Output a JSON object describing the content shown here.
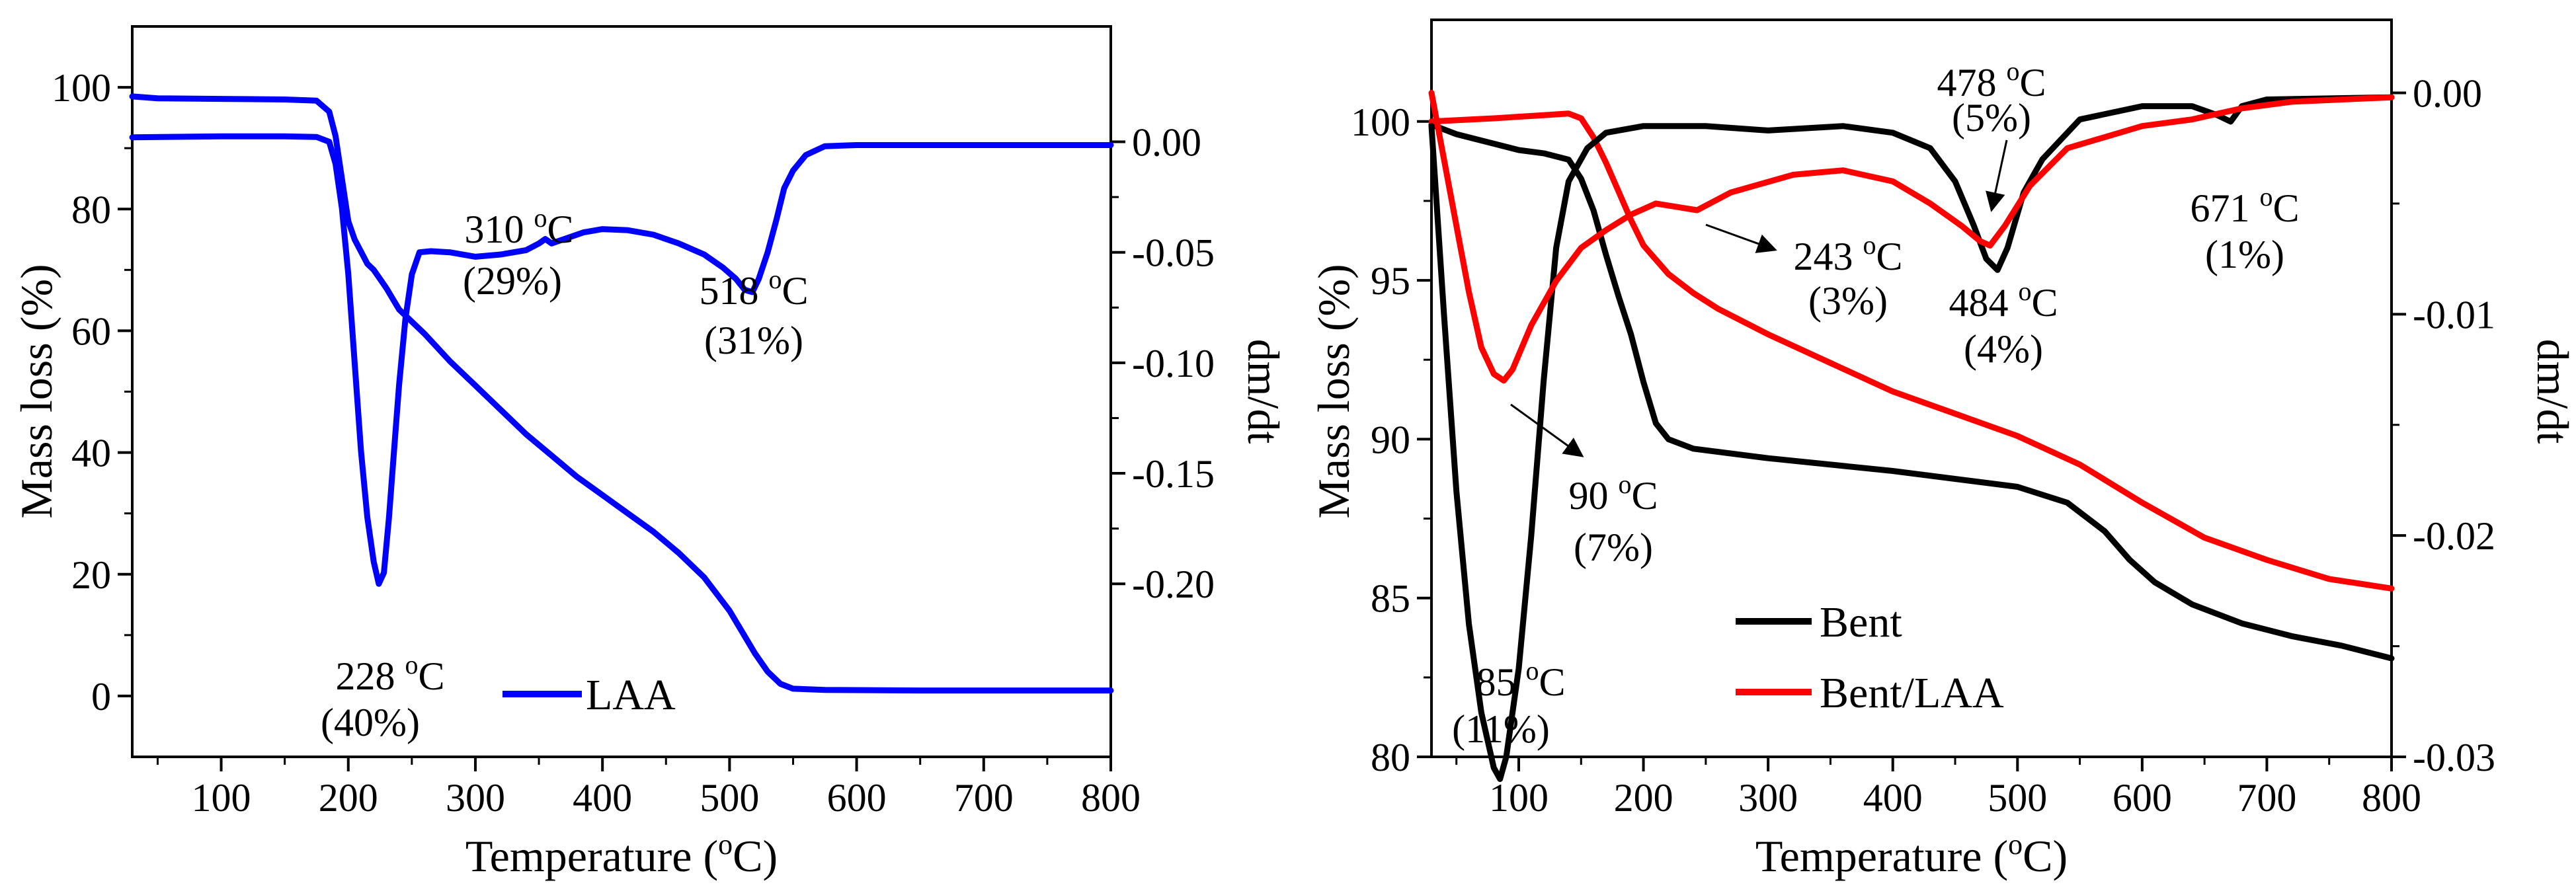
{
  "chart_data": [
    {
      "id": "left",
      "type": "line",
      "title": "",
      "xlabel": "Temperature (",
      "xlabel_sup": "o",
      "xlabel_end": "C)",
      "ylabel": "Mass loss (%)",
      "y2label": "dm/dt",
      "xlim": [
        30,
        800
      ],
      "ylim": [
        -10,
        110
      ],
      "y2lim": [
        -0.2783,
        0.0522
      ],
      "xticks": [
        100,
        200,
        300,
        400,
        500,
        600,
        700,
        800
      ],
      "xtick_labels": [
        "100",
        "200",
        "300",
        "400",
        "500",
        "600",
        "700",
        "800"
      ],
      "yticks": [
        0,
        20,
        40,
        60,
        80,
        100
      ],
      "ytick_labels": [
        "0",
        "20",
        "40",
        "60",
        "80",
        "100"
      ],
      "y2ticks": [
        0.0,
        -0.05,
        -0.1,
        -0.15,
        -0.2
      ],
      "y2tick_labels": [
        "0.00",
        "-0.05",
        "-0.10",
        "-0.15",
        "-0.20"
      ],
      "legend": {
        "position": "bottom-center",
        "entries": [
          "LAA"
        ]
      },
      "series": [
        {
          "name": "LAA",
          "axis": "left",
          "color": "#0000ff",
          "points": [
            [
              30,
              98.5
            ],
            [
              50,
              98.2
            ],
            [
              100,
              98.1
            ],
            [
              150,
              98.0
            ],
            [
              175,
              97.8
            ],
            [
              185,
              96
            ],
            [
              190,
              92
            ],
            [
              195,
              85
            ],
            [
              200,
              78
            ],
            [
              205,
              75
            ],
            [
              210,
              73
            ],
            [
              215,
              71
            ],
            [
              220,
              70
            ],
            [
              225,
              68.5
            ],
            [
              230,
              67
            ],
            [
              240,
              63.5
            ],
            [
              260,
              59.5
            ],
            [
              280,
              55
            ],
            [
              300,
              51
            ],
            [
              320,
              47
            ],
            [
              340,
              43
            ],
            [
              360,
              39.5
            ],
            [
              380,
              36
            ],
            [
              400,
              33
            ],
            [
              420,
              30
            ],
            [
              440,
              27
            ],
            [
              460,
              23.5
            ],
            [
              480,
              19.5
            ],
            [
              500,
              14
            ],
            [
              510,
              10.5
            ],
            [
              520,
              7
            ],
            [
              530,
              4
            ],
            [
              540,
              2
            ],
            [
              550,
              1.2
            ],
            [
              575,
              1.0
            ],
            [
              650,
              0.9
            ],
            [
              800,
              0.9
            ]
          ]
        },
        {
          "name": "LAA dm/dt",
          "axis": "right",
          "color": "#0000ff",
          "points": [
            [
              30,
              0.002
            ],
            [
              100,
              0.0025
            ],
            [
              150,
              0.0025
            ],
            [
              175,
              0.0022
            ],
            [
              185,
              0.0
            ],
            [
              190,
              -0.01
            ],
            [
              195,
              -0.03
            ],
            [
              200,
              -0.06
            ],
            [
              205,
              -0.1
            ],
            [
              210,
              -0.14
            ],
            [
              215,
              -0.17
            ],
            [
              220,
              -0.19
            ],
            [
              224,
              -0.2
            ],
            [
              228,
              -0.195
            ],
            [
              232,
              -0.17
            ],
            [
              236,
              -0.14
            ],
            [
              240,
              -0.11
            ],
            [
              245,
              -0.08
            ],
            [
              250,
              -0.06
            ],
            [
              256,
              -0.05
            ],
            [
              265,
              -0.0495
            ],
            [
              280,
              -0.05
            ],
            [
              300,
              -0.052
            ],
            [
              320,
              -0.051
            ],
            [
              340,
              -0.049
            ],
            [
              350,
              -0.046
            ],
            [
              355,
              -0.044
            ],
            [
              360,
              -0.046
            ],
            [
              370,
              -0.044
            ],
            [
              385,
              -0.041
            ],
            [
              400,
              -0.0395
            ],
            [
              420,
              -0.04
            ],
            [
              440,
              -0.042
            ],
            [
              460,
              -0.046
            ],
            [
              480,
              -0.051
            ],
            [
              495,
              -0.057
            ],
            [
              505,
              -0.062
            ],
            [
              512,
              -0.067
            ],
            [
              518,
              -0.068
            ],
            [
              523,
              -0.062
            ],
            [
              530,
              -0.05
            ],
            [
              537,
              -0.035
            ],
            [
              543,
              -0.021
            ],
            [
              550,
              -0.013
            ],
            [
              560,
              -0.006
            ],
            [
              575,
              -0.002
            ],
            [
              600,
              -0.0015
            ],
            [
              700,
              -0.0015
            ],
            [
              800,
              -0.0015
            ]
          ]
        }
      ],
      "annotations": [
        {
          "temp": "228",
          "unit_sup": "o",
          "unit": "C",
          "pct": "(40%)"
        },
        {
          "temp": "310",
          "unit_sup": "o",
          "unit": "C",
          "pct": "(29%)"
        },
        {
          "temp": "518",
          "unit_sup": "o",
          "unit": "C",
          "pct": "(31%)"
        }
      ]
    },
    {
      "id": "right",
      "type": "line",
      "title": "",
      "xlabel": "Temperature (",
      "xlabel_sup": "o",
      "xlabel_end": "C)",
      "ylabel": "Mass loss (%)",
      "y2label": "dm/dt",
      "xlim": [
        30,
        800
      ],
      "ylim": [
        80,
        103.2
      ],
      "y2lim": [
        -0.03,
        0.0033
      ],
      "xticks": [
        100,
        200,
        300,
        400,
        500,
        600,
        700,
        800
      ],
      "xtick_labels": [
        "100",
        "200",
        "300",
        "400",
        "500",
        "600",
        "700",
        "800"
      ],
      "yticks": [
        80,
        85,
        90,
        95,
        100
      ],
      "ytick_labels": [
        "80",
        "85",
        "90",
        "95",
        "100"
      ],
      "y2ticks": [
        0.0,
        -0.01,
        -0.02,
        -0.03
      ],
      "y2tick_labels": [
        "0.00",
        "-0.01",
        "-0.02",
        "-0.03"
      ],
      "legend": {
        "position": "bottom-center",
        "entries": [
          "Bent",
          "Bent/LAA"
        ]
      },
      "series": [
        {
          "name": "Bent",
          "axis": "left",
          "color": "#000000",
          "points": [
            [
              30,
              99.9
            ],
            [
              50,
              99.6
            ],
            [
              80,
              99.3
            ],
            [
              100,
              99.1
            ],
            [
              120,
              99.0
            ],
            [
              140,
              98.8
            ],
            [
              150,
              98.2
            ],
            [
              160,
              97.2
            ],
            [
              170,
              95.8
            ],
            [
              180,
              94.5
            ],
            [
              190,
              93.3
            ],
            [
              200,
              91.8
            ],
            [
              210,
              90.5
            ],
            [
              220,
              90.0
            ],
            [
              240,
              89.7
            ],
            [
              300,
              89.4
            ],
            [
              400,
              89.0
            ],
            [
              500,
              88.5
            ],
            [
              540,
              88.0
            ],
            [
              570,
              87.1
            ],
            [
              590,
              86.2
            ],
            [
              610,
              85.5
            ],
            [
              640,
              84.8
            ],
            [
              680,
              84.2
            ],
            [
              720,
              83.8
            ],
            [
              760,
              83.5
            ],
            [
              800,
              83.1
            ]
          ]
        },
        {
          "name": "Bent/LAA",
          "axis": "left",
          "color": "#ff0000",
          "points": [
            [
              30,
              100.0
            ],
            [
              80,
              100.1
            ],
            [
              120,
              100.2
            ],
            [
              140,
              100.25
            ],
            [
              150,
              100.1
            ],
            [
              160,
              99.5
            ],
            [
              170,
              98.7
            ],
            [
              180,
              97.8
            ],
            [
              190,
              96.9
            ],
            [
              200,
              96.1
            ],
            [
              220,
              95.2
            ],
            [
              240,
              94.6
            ],
            [
              260,
              94.1
            ],
            [
              300,
              93.3
            ],
            [
              350,
              92.4
            ],
            [
              400,
              91.5
            ],
            [
              450,
              90.8
            ],
            [
              500,
              90.1
            ],
            [
              550,
              89.2
            ],
            [
              600,
              88.0
            ],
            [
              650,
              86.9
            ],
            [
              700,
              86.2
            ],
            [
              750,
              85.6
            ],
            [
              800,
              85.3
            ]
          ]
        },
        {
          "name": "Bent dm/dt",
          "axis": "right",
          "color": "#000000",
          "points": [
            [
              30,
              -0.0015
            ],
            [
              40,
              -0.01
            ],
            [
              50,
              -0.018
            ],
            [
              60,
              -0.024
            ],
            [
              70,
              -0.028
            ],
            [
              80,
              -0.0305
            ],
            [
              85,
              -0.031
            ],
            [
              90,
              -0.03
            ],
            [
              100,
              -0.026
            ],
            [
              110,
              -0.02
            ],
            [
              120,
              -0.013
            ],
            [
              130,
              -0.007
            ],
            [
              140,
              -0.004
            ],
            [
              155,
              -0.0025
            ],
            [
              170,
              -0.0018
            ],
            [
              200,
              -0.0015
            ],
            [
              250,
              -0.0015
            ],
            [
              300,
              -0.0017
            ],
            [
              360,
              -0.0015
            ],
            [
              400,
              -0.0018
            ],
            [
              430,
              -0.0025
            ],
            [
              450,
              -0.004
            ],
            [
              465,
              -0.006
            ],
            [
              475,
              -0.0075
            ],
            [
              484,
              -0.008
            ],
            [
              492,
              -0.007
            ],
            [
              505,
              -0.0045
            ],
            [
              520,
              -0.003
            ],
            [
              550,
              -0.0012
            ],
            [
              600,
              -0.0006
            ],
            [
              640,
              -0.0006
            ],
            [
              660,
              -0.001
            ],
            [
              671,
              -0.0013
            ],
            [
              680,
              -0.0006
            ],
            [
              700,
              -0.0003
            ],
            [
              800,
              -0.0002
            ]
          ]
        },
        {
          "name": "Bent/LAA dm/dt",
          "axis": "right",
          "color": "#ff0000",
          "points": [
            [
              30,
              0.0
            ],
            [
              40,
              -0.003
            ],
            [
              50,
              -0.006
            ],
            [
              60,
              -0.009
            ],
            [
              70,
              -0.0115
            ],
            [
              80,
              -0.0127
            ],
            [
              88,
              -0.013
            ],
            [
              95,
              -0.0125
            ],
            [
              110,
              -0.0105
            ],
            [
              130,
              -0.0085
            ],
            [
              150,
              -0.007
            ],
            [
              170,
              -0.0062
            ],
            [
              190,
              -0.0055
            ],
            [
              210,
              -0.005
            ],
            [
              243,
              -0.0053
            ],
            [
              270,
              -0.0045
            ],
            [
              320,
              -0.0037
            ],
            [
              360,
              -0.0035
            ],
            [
              400,
              -0.004
            ],
            [
              430,
              -0.005
            ],
            [
              455,
              -0.006
            ],
            [
              470,
              -0.0067
            ],
            [
              478,
              -0.0069
            ],
            [
              490,
              -0.006
            ],
            [
              510,
              -0.0042
            ],
            [
              540,
              -0.0025
            ],
            [
              600,
              -0.0015
            ],
            [
              640,
              -0.0012
            ],
            [
              680,
              -0.0007
            ],
            [
              720,
              -0.0004
            ],
            [
              800,
              -0.0002
            ]
          ]
        }
      ],
      "annotations": [
        {
          "temp": "478",
          "unit_sup": "o",
          "unit": "C",
          "pct": "(5%)"
        },
        {
          "temp": "243",
          "unit_sup": "o",
          "unit": "C",
          "pct": "(3%)"
        },
        {
          "temp": "484",
          "unit_sup": "o",
          "unit": "C",
          "pct": "(4%)"
        },
        {
          "temp": "671",
          "unit_sup": "o",
          "unit": "C",
          "pct": "(1%)"
        },
        {
          "temp": "90",
          "unit_sup": "o",
          "unit": "C",
          "pct": "(7%)"
        },
        {
          "temp": "85",
          "unit_sup": "o",
          "unit": "C",
          "pct": "(11%)"
        }
      ]
    }
  ]
}
